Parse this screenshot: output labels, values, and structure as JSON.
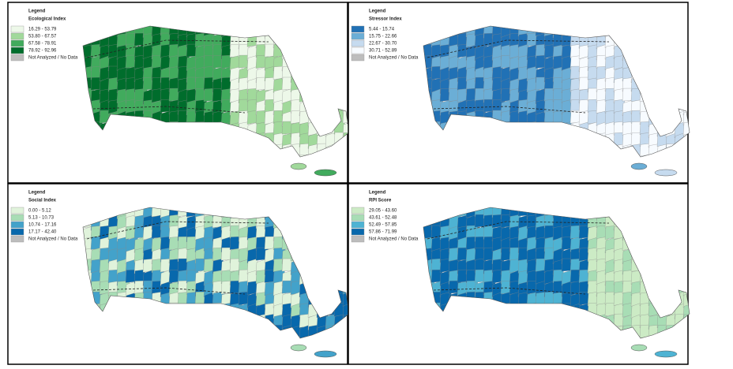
{
  "panels": [
    {
      "legend_heading": "Legend",
      "title": "Ecological Index",
      "no_data": "Not Analyzed / No Data",
      "no_data_color": "#bdbdbd",
      "items": [
        {
          "label": "16.29 - 53.79",
          "color": "#edf8e9"
        },
        {
          "label": "53.80 - 67.57",
          "color": "#a1d99b"
        },
        {
          "label": "67.58 - 78.91",
          "color": "#41ab5d"
        },
        {
          "label": "78.92 - 92.96",
          "color": "#006d2c"
        }
      ]
    },
    {
      "legend_heading": "Legend",
      "title": "Stressor Index",
      "no_data": "Not Analyzed / No Data",
      "no_data_color": "#bdbdbd",
      "items": [
        {
          "label": "5.44 - 15.74",
          "color": "#2171b5"
        },
        {
          "label": "15.75 - 22.66",
          "color": "#6baed6"
        },
        {
          "label": "22.67 - 30.70",
          "color": "#c6dbef"
        },
        {
          "label": "30.71 - 52.89",
          "color": "#f7fbff"
        }
      ]
    },
    {
      "legend_heading": "Legend",
      "title": "Social Index",
      "no_data": "Not Analyzed / No Data",
      "no_data_color": "#bdbdbd",
      "items": [
        {
          "label": "0.00 - 5.12",
          "color": "#e0f3db"
        },
        {
          "label": "5.13 - 10.73",
          "color": "#a8ddb5"
        },
        {
          "label": "10.74 - 17.16",
          "color": "#43a2ca"
        },
        {
          "label": "17.17 - 42.40",
          "color": "#0868ac"
        }
      ]
    },
    {
      "legend_heading": "Legend",
      "title": "RPI Score",
      "no_data": "Not Analyzed / No Data",
      "no_data_color": "#bdbdbd",
      "items": [
        {
          "label": "29.05 - 43.60",
          "color": "#ccebc5"
        },
        {
          "label": "43.61 - 52.48",
          "color": "#a8ddb5"
        },
        {
          "label": "52.49 - 57.85",
          "color": "#4eb3d3"
        },
        {
          "label": "57.86 - 71.99",
          "color": "#0868ac"
        }
      ]
    }
  ]
}
